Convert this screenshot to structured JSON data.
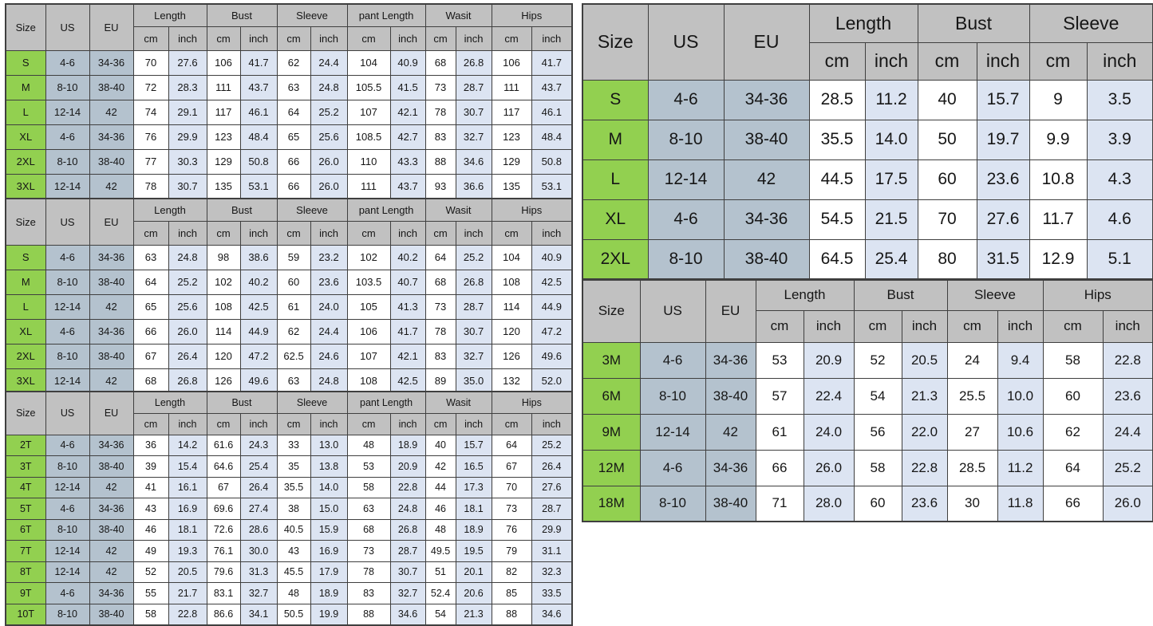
{
  "colors": {
    "header_bg": "#c1c1c1",
    "size_col_bg": "#92d050",
    "us_eu_col_bg": "#b4c2ce",
    "cm_col_bg": "#ffffff",
    "inch_col_bg": "#dce4f2",
    "border": "#3f3f3f",
    "text": "#161616",
    "corner_mark_green": "#1f7a1f",
    "page_bg": "#ffffff"
  },
  "tables": [
    {
      "name": "left-top-size-chart",
      "columns": {
        "id": [
          "Size",
          "US",
          "EU"
        ],
        "groups": [
          "Length",
          "Bust",
          "Sleeve",
          "pant Length",
          "Wasit",
          "Hips"
        ],
        "units": [
          "cm",
          "inch"
        ]
      },
      "rows": [
        {
          "size": "S",
          "us": "4-6",
          "eu": "34-36",
          "values": [
            "70",
            "27.6",
            "106",
            "41.7",
            "62",
            "24.4",
            "104",
            "40.9",
            "68",
            "26.8",
            "106",
            "41.7"
          ]
        },
        {
          "size": "M",
          "us": "8-10",
          "eu": "38-40",
          "values": [
            "72",
            "28.3",
            "111",
            "43.7",
            "63",
            "24.8",
            "105.5",
            "41.5",
            "73",
            "28.7",
            "111",
            "43.7"
          ]
        },
        {
          "size": "L",
          "us": "12-14",
          "eu": "42",
          "values": [
            "74",
            "29.1",
            "117",
            "46.1",
            "64",
            "25.2",
            "107",
            "42.1",
            "78",
            "30.7",
            "117",
            "46.1"
          ]
        },
        {
          "size": "XL",
          "us": "4-6",
          "eu": "34-36",
          "values": [
            "76",
            "29.9",
            "123",
            "48.4",
            "65",
            "25.6",
            "108.5",
            "42.7",
            "83",
            "32.7",
            "123",
            "48.4"
          ]
        },
        {
          "size": "2XL",
          "us": "8-10",
          "eu": "38-40",
          "values": [
            "77",
            "30.3",
            "129",
            "50.8",
            "66",
            "26.0",
            "110",
            "43.3",
            "88",
            "34.6",
            "129",
            "50.8"
          ]
        },
        {
          "size": "3XL",
          "us": "12-14",
          "eu": "42",
          "values": [
            "78",
            "30.7",
            "135",
            "53.1",
            "66",
            "26.0",
            "111",
            "43.7",
            "93",
            "36.6",
            "135",
            "53.1"
          ]
        }
      ]
    },
    {
      "name": "left-middle-size-chart",
      "columns": {
        "id": [
          "Size",
          "US",
          "EU"
        ],
        "groups": [
          "Length",
          "Bust",
          "Sleeve",
          "pant Length",
          "Wasit",
          "Hips"
        ],
        "units": [
          "cm",
          "inch"
        ]
      },
      "rows": [
        {
          "size": "S",
          "us": "4-6",
          "eu": "34-36",
          "values": [
            "63",
            "24.8",
            "98",
            "38.6",
            "59",
            "23.2",
            "102",
            "40.2",
            "64",
            "25.2",
            "104",
            "40.9"
          ]
        },
        {
          "size": "M",
          "us": "8-10",
          "eu": "38-40",
          "values": [
            "64",
            "25.2",
            "102",
            "40.2",
            "60",
            "23.6",
            "103.5",
            "40.7",
            "68",
            "26.8",
            "108",
            "42.5"
          ]
        },
        {
          "size": "L",
          "us": "12-14",
          "eu": "42",
          "values": [
            "65",
            "25.6",
            "108",
            "42.5",
            "61",
            "24.0",
            "105",
            "41.3",
            "73",
            "28.7",
            "114",
            "44.9"
          ]
        },
        {
          "size": "XL",
          "us": "4-6",
          "eu": "34-36",
          "values": [
            "66",
            "26.0",
            "114",
            "44.9",
            "62",
            "24.4",
            "106",
            "41.7",
            "78",
            "30.7",
            "120",
            "47.2"
          ]
        },
        {
          "size": "2XL",
          "us": "8-10",
          "eu": "38-40",
          "values": [
            "67",
            "26.4",
            "120",
            "47.2",
            "62.5",
            "24.6",
            "107",
            "42.1",
            "83",
            "32.7",
            "126",
            "49.6"
          ]
        },
        {
          "size": "3XL",
          "us": "12-14",
          "eu": "42",
          "values": [
            "68",
            "26.8",
            "126",
            "49.6",
            "63",
            "24.8",
            "108",
            "42.5",
            "89",
            "35.0",
            "132",
            "52.0"
          ]
        }
      ]
    },
    {
      "name": "left-bottom-toddler-size-chart",
      "columns": {
        "id": [
          "Size",
          "US",
          "EU"
        ],
        "groups": [
          "Length",
          "Bust",
          "Sleeve",
          "pant Length",
          "Wasit",
          "Hips"
        ],
        "units": [
          "cm",
          "inch"
        ]
      },
      "rows": [
        {
          "size": "2T",
          "us": "4-6",
          "eu": "34-36",
          "values": [
            "36",
            "14.2",
            "61.6",
            "24.3",
            "33",
            "13.0",
            "48",
            "18.9",
            "40",
            "15.7",
            "64",
            "25.2"
          ]
        },
        {
          "size": "3T",
          "us": "8-10",
          "eu": "38-40",
          "values": [
            "39",
            "15.4",
            "64.6",
            "25.4",
            "35",
            "13.8",
            "53",
            "20.9",
            "42",
            "16.5",
            "67",
            "26.4"
          ]
        },
        {
          "size": "4T",
          "us": "12-14",
          "eu": "42",
          "values": [
            "41",
            "16.1",
            "67",
            "26.4",
            "35.5",
            "14.0",
            "58",
            "22.8",
            "44",
            "17.3",
            "70",
            "27.6"
          ]
        },
        {
          "size": "5T",
          "us": "4-6",
          "eu": "34-36",
          "values": [
            "43",
            "16.9",
            "69.6",
            "27.4",
            "38",
            "15.0",
            "63",
            "24.8",
            "46",
            "18.1",
            "73",
            "28.7"
          ]
        },
        {
          "size": "6T",
          "us": "8-10",
          "eu": "38-40",
          "values": [
            "46",
            "18.1",
            "72.6",
            "28.6",
            "40.5",
            "15.9",
            "68",
            "26.8",
            "48",
            "18.9",
            "76",
            "29.9"
          ]
        },
        {
          "size": "7T",
          "us": "12-14",
          "eu": "42",
          "values": [
            "49",
            "19.3",
            "76.1",
            "30.0",
            "43",
            "16.9",
            "73",
            "28.7",
            "49.5",
            "19.5",
            "79",
            "31.1"
          ]
        },
        {
          "size": "8T",
          "us": "12-14",
          "eu": "42",
          "values": [
            "52",
            "20.5",
            "79.6",
            "31.3",
            "45.5",
            "17.9",
            "78",
            "30.7",
            "51",
            "20.1",
            "82",
            "32.3"
          ]
        },
        {
          "size": "9T",
          "us": "4-6",
          "eu": "34-36",
          "values": [
            "55",
            "21.7",
            "83.1",
            "32.7",
            "48",
            "18.9",
            "83",
            "32.7",
            "52.4",
            "20.6",
            "85",
            "33.5"
          ]
        },
        {
          "size": "10T",
          "us": "8-10",
          "eu": "38-40",
          "values": [
            "58",
            "22.8",
            "86.6",
            "34.1",
            "50.5",
            "19.9",
            "88",
            "34.6",
            "54",
            "21.3",
            "88",
            "34.6"
          ]
        }
      ]
    },
    {
      "name": "right-top-size-chart",
      "columns": {
        "id": [
          "Size",
          "US",
          "EU"
        ],
        "groups": [
          "Length",
          "Bust",
          "Sleeve"
        ],
        "units": [
          "cm",
          "inch"
        ]
      },
      "corner_mark": {
        "group": "Bust",
        "corner": "top-right"
      },
      "rows": [
        {
          "size": "S",
          "us": "4-6",
          "eu": "34-36",
          "values": [
            "28.5",
            "11.2",
            "40",
            "15.7",
            "9",
            "3.5"
          ]
        },
        {
          "size": "M",
          "us": "8-10",
          "eu": "38-40",
          "values": [
            "35.5",
            "14.0",
            "50",
            "19.7",
            "9.9",
            "3.9"
          ]
        },
        {
          "size": "L",
          "us": "12-14",
          "eu": "42",
          "values": [
            "44.5",
            "17.5",
            "60",
            "23.6",
            "10.8",
            "4.3"
          ]
        },
        {
          "size": "XL",
          "us": "4-6",
          "eu": "34-36",
          "values": [
            "54.5",
            "21.5",
            "70",
            "27.6",
            "11.7",
            "4.6"
          ]
        },
        {
          "size": "2XL",
          "us": "8-10",
          "eu": "38-40",
          "values": [
            "64.5",
            "25.4",
            "80",
            "31.5",
            "12.9",
            "5.1"
          ]
        }
      ]
    },
    {
      "name": "right-bottom-baby-size-chart",
      "columns": {
        "id": [
          "Size",
          "US",
          "EU"
        ],
        "groups": [
          "Length",
          "Bust",
          "Sleeve",
          "Hips"
        ],
        "units": [
          "cm",
          "inch"
        ]
      },
      "corner_mark": {
        "group": "Sleeve",
        "corner": "top-left"
      },
      "rows": [
        {
          "size": "3M",
          "us": "4-6",
          "eu": "34-36",
          "values": [
            "53",
            "20.9",
            "52",
            "20.5",
            "24",
            "9.4",
            "58",
            "22.8"
          ]
        },
        {
          "size": "6M",
          "us": "8-10",
          "eu": "38-40",
          "values": [
            "57",
            "22.4",
            "54",
            "21.3",
            "25.5",
            "10.0",
            "60",
            "23.6"
          ]
        },
        {
          "size": "9M",
          "us": "12-14",
          "eu": "42",
          "values": [
            "61",
            "24.0",
            "56",
            "22.0",
            "27",
            "10.6",
            "62",
            "24.4"
          ]
        },
        {
          "size": "12M",
          "us": "4-6",
          "eu": "34-36",
          "values": [
            "66",
            "26.0",
            "58",
            "22.8",
            "28.5",
            "11.2",
            "64",
            "25.2"
          ]
        },
        {
          "size": "18M",
          "us": "8-10",
          "eu": "38-40",
          "values": [
            "71",
            "28.0",
            "60",
            "23.6",
            "30",
            "11.8",
            "66",
            "26.0"
          ]
        }
      ]
    }
  ]
}
